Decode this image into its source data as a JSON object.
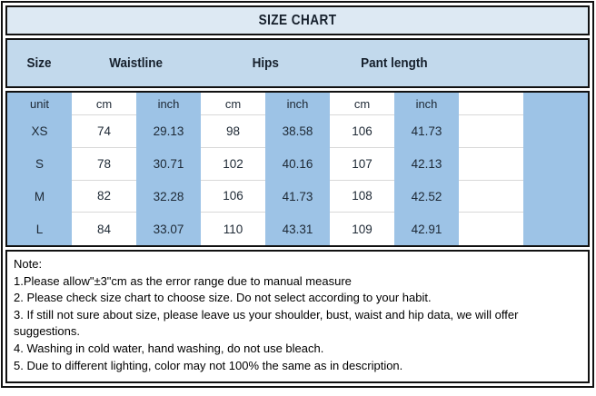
{
  "title": "SIZE CHART",
  "colors": {
    "title_bg": "#dde9f3",
    "header_bg": "#c2d9ec",
    "column_blue": "#9dc3e6",
    "column_white": "#ffffff",
    "border": "#111111",
    "row_line": "#d8d8d8",
    "text_dark": "#16202c"
  },
  "header": {
    "columns": [
      "Size",
      "Waistline",
      "Hips",
      "Pant length"
    ]
  },
  "table": {
    "unit_row": [
      "unit",
      "cm",
      "inch",
      "cm",
      "inch",
      "cm",
      "inch"
    ],
    "rows": [
      {
        "size": "XS",
        "values": [
          "74",
          "29.13",
          "98",
          "38.58",
          "106",
          "41.73"
        ]
      },
      {
        "size": "S",
        "values": [
          "78",
          "30.71",
          "102",
          "40.16",
          "107",
          "42.13"
        ]
      },
      {
        "size": "M",
        "values": [
          "82",
          "32.28",
          "106",
          "41.73",
          "108",
          "42.52"
        ]
      },
      {
        "size": "L",
        "values": [
          "84",
          "33.07",
          "110",
          "43.31",
          "109",
          "42.91"
        ]
      }
    ]
  },
  "notes": {
    "label": "Note:",
    "items": [
      "1.Please allow\"±3\"cm as the error range due to manual measure",
      "2. Please check size chart to choose size. Do not select according to your habit.",
      "3. If still not sure about size, please leave us your shoulder, bust, waist and hip data, we will offer suggestions.",
      "4. Washing in cold water, hand washing, do not use bleach.",
      "5. Due to different lighting, color may not 100% the same as in description."
    ]
  },
  "chart_data": {
    "type": "table",
    "title": "SIZE CHART",
    "columns": [
      "Size",
      "Waistline cm",
      "Waistline inch",
      "Hips cm",
      "Hips inch",
      "Pant length cm",
      "Pant length inch"
    ],
    "rows": [
      [
        "XS",
        74,
        29.13,
        98,
        38.58,
        106,
        41.73
      ],
      [
        "S",
        78,
        30.71,
        102,
        40.16,
        107,
        42.13
      ],
      [
        "M",
        82,
        32.28,
        106,
        41.73,
        108,
        42.52
      ],
      [
        "L",
        84,
        33.07,
        110,
        43.31,
        109,
        42.91
      ]
    ]
  }
}
